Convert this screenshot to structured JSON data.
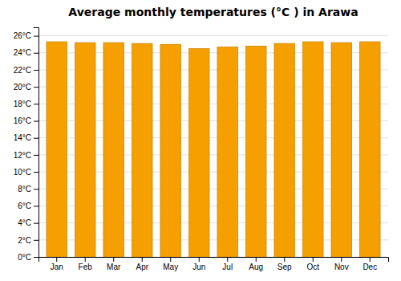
{
  "chart_data": {
    "type": "bar",
    "title": "Average monthly temperatures (°C ) in Arawa",
    "categories": [
      "Jan",
      "Feb",
      "Mar",
      "Apr",
      "May",
      "Jun",
      "Jul",
      "Aug",
      "Sep",
      "Oct",
      "Nov",
      "Dec"
    ],
    "values": [
      25.3,
      25.2,
      25.2,
      25.1,
      25.0,
      24.5,
      24.7,
      24.8,
      25.1,
      25.3,
      25.2,
      25.3
    ],
    "color": "#F5A000",
    "ylim": [
      0,
      27
    ],
    "yticks": [
      {
        "value": 0,
        "label": "0°C"
      },
      {
        "value": 2,
        "label": "2°C"
      },
      {
        "value": 4,
        "label": "4°C"
      },
      {
        "value": 6,
        "label": "6°C"
      },
      {
        "value": 8,
        "label": "8°C"
      },
      {
        "value": 10,
        "label": "10°C"
      },
      {
        "value": 12,
        "label": "12°C"
      },
      {
        "value": 14,
        "label": "14°C"
      },
      {
        "value": 16,
        "label": "16°C"
      },
      {
        "value": 18,
        "label": "18°C"
      },
      {
        "value": 20,
        "label": "20°C"
      },
      {
        "value": 22,
        "label": "22°C"
      },
      {
        "value": 24,
        "label": "24°C"
      },
      {
        "value": 26,
        "label": "26°C"
      }
    ],
    "grid": true
  }
}
